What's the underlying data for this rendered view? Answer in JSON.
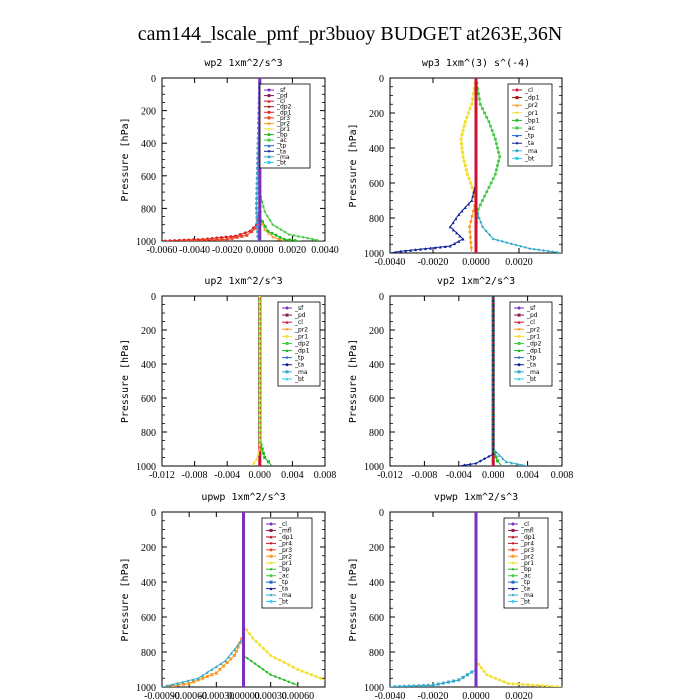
{
  "page_title": "cam144_lscale_pmf_pr3buoy  BUDGET at263E,36N",
  "chart_data": [
    {
      "type": "line",
      "title": "wp2  1xm^2/s^3",
      "ylabel": "Pressure [hPa]",
      "ylim": [
        1000,
        0
      ],
      "y_ticks": [
        "0",
        "200",
        "400",
        "600",
        "800",
        "1000"
      ],
      "xlim": [
        -0.006,
        0.004
      ],
      "x_ticks": [
        "-0.0060",
        "-0.0040",
        "-0.0020",
        "0.0000",
        "0.0020",
        "0.0040"
      ],
      "legend_position": "top-right",
      "legend": [
        "_sf",
        "_pd",
        "_cl",
        "_dp2",
        "_dp1",
        "_pr3",
        "_pr2",
        "_pr1",
        "_bp",
        "_ac",
        "_tp",
        "_ta",
        "_ma",
        "_bt"
      ],
      "series_colors": [
        "#7b2fbe",
        "#8b1a5a",
        "#cc1133",
        "#aa1111",
        "#dd2222",
        "#ee4422",
        "#ff9922",
        "#f2e030",
        "#22bb22",
        "#44cc44",
        "#2266cc",
        "#112299",
        "#33aacc",
        "#33ccee"
      ],
      "series": [
        {
          "name": "_dp1",
          "points": [
            [
              -0.0058,
              1000
            ],
            [
              -0.0035,
              990
            ],
            [
              -0.0015,
              970
            ],
            [
              -0.0006,
              940
            ],
            [
              -0.0002,
              900
            ],
            [
              0.0,
              820
            ],
            [
              0.0,
              0
            ]
          ]
        },
        {
          "name": "_pr3",
          "points": [
            [
              -0.0048,
              1000
            ],
            [
              -0.002,
              990
            ],
            [
              -0.0008,
              965
            ],
            [
              -0.0002,
              920
            ],
            [
              0.0,
              850
            ],
            [
              0.0,
              0
            ]
          ]
        },
        {
          "name": "_pr2",
          "points": [
            [
              0.0,
              0
            ],
            [
              0.0,
              860
            ],
            [
              0.0003,
              930
            ],
            [
              0.0008,
              975
            ],
            [
              0.0015,
              1000
            ]
          ]
        },
        {
          "name": "_ac",
          "points": [
            [
              0.0,
              0
            ],
            [
              0.0,
              700
            ],
            [
              0.0003,
              820
            ],
            [
              0.0008,
              900
            ],
            [
              0.0018,
              960
            ],
            [
              0.0038,
              1000
            ]
          ]
        },
        {
          "name": "_bp",
          "points": [
            [
              0.0,
              0
            ],
            [
              0.0,
              850
            ],
            [
              0.0005,
              940
            ],
            [
              0.0015,
              990
            ],
            [
              0.0025,
              1000
            ]
          ]
        },
        {
          "name": "_ma",
          "points": [
            [
              0.0,
              0
            ],
            [
              -0.0001,
              400
            ],
            [
              -0.0002,
              800
            ],
            [
              -0.0001,
              1000
            ]
          ]
        },
        {
          "name": "_sf",
          "points": [
            [
              0.0,
              0
            ],
            [
              0.0,
              1000
            ]
          ]
        }
      ]
    },
    {
      "type": "line",
      "title": "wp3  1xm^(3) s^(-4)",
      "ylabel": "Pressure [hPa]",
      "ylim": [
        1000,
        0
      ],
      "y_ticks": [
        "0",
        "200",
        "400",
        "600",
        "800",
        "1000"
      ],
      "xlim": [
        -0.004,
        0.004
      ],
      "x_ticks": [
        "-0.0040",
        "-0.0020",
        "0.0000",
        "0.0020"
      ],
      "legend_position": "top-right",
      "legend": [
        "_cl",
        "_dp1",
        "_pr2",
        "_pr1",
        "_bp1",
        "_ac",
        "_tp",
        "_ta",
        "_ma",
        "_bt"
      ],
      "series_colors": [
        "#cc1133",
        "#aa1111",
        "#ff9922",
        "#f2e030",
        "#22bb22",
        "#44cc44",
        "#2266cc",
        "#112299",
        "#33aacc",
        "#33ccee"
      ],
      "series": [
        {
          "name": "_ac",
          "points": [
            [
              0.0,
              0
            ],
            [
              0.0002,
              150
            ],
            [
              0.0006,
              250
            ],
            [
              0.0009,
              350
            ],
            [
              0.0011,
              450
            ],
            [
              0.0009,
              550
            ],
            [
              0.0005,
              650
            ],
            [
              0.0001,
              750
            ],
            [
              0.0,
              850
            ],
            [
              0.0,
              1000
            ]
          ]
        },
        {
          "name": "_pr1",
          "points": [
            [
              0.0,
              0
            ],
            [
              -0.0002,
              150
            ],
            [
              -0.0005,
              250
            ],
            [
              -0.0007,
              350
            ],
            [
              -0.0006,
              450
            ],
            [
              -0.0004,
              550
            ],
            [
              -0.0001,
              650
            ],
            [
              0.0,
              750
            ],
            [
              0.0,
              1000
            ]
          ]
        },
        {
          "name": "_ta",
          "points": [
            [
              0.0,
              0
            ],
            [
              0.0,
              600
            ],
            [
              -0.0002,
              700
            ],
            [
              -0.0008,
              780
            ],
            [
              -0.0012,
              850
            ],
            [
              -0.0006,
              920
            ],
            [
              -0.0012,
              960
            ],
            [
              -0.0035,
              990
            ],
            [
              -0.004,
              1000
            ]
          ]
        },
        {
          "name": "_ma",
          "points": [
            [
              0.0,
              0
            ],
            [
              0.0,
              750
            ],
            [
              0.0003,
              850
            ],
            [
              0.0008,
              920
            ],
            [
              0.0025,
              975
            ],
            [
              0.004,
              1000
            ]
          ]
        },
        {
          "name": "_pr2",
          "points": [
            [
              0.0,
              0
            ],
            [
              0.0,
              700
            ],
            [
              -0.0003,
              850
            ],
            [
              -0.0002,
              1000
            ]
          ]
        },
        {
          "name": "_cl",
          "points": [
            [
              0.0,
              0
            ],
            [
              0.0,
              1000
            ]
          ]
        }
      ]
    },
    {
      "type": "line",
      "title": "up2  1xm^2/s^3",
      "ylabel": "Pressure [hPa]",
      "ylim": [
        1000,
        0
      ],
      "y_ticks": [
        "0",
        "200",
        "400",
        "600",
        "800",
        "1000"
      ],
      "xlim": [
        -0.012,
        0.008
      ],
      "x_ticks": [
        "-0.012",
        "-0.008",
        "-0.004",
        "0.000",
        "0.004",
        "0.008"
      ],
      "legend_position": "top-right",
      "legend": [
        "_sf",
        "_pd",
        "_cl",
        "_pr2",
        "_pr1",
        "_dp2",
        "_dp1",
        "_tp",
        "_ta",
        "_ma",
        "_bt"
      ],
      "series_colors": [
        "#7b2fbe",
        "#8b1a5a",
        "#cc1133",
        "#ff9922",
        "#f2e030",
        "#44cc44",
        "#22bb22",
        "#2266cc",
        "#112299",
        "#33aacc",
        "#33ccee"
      ],
      "series": [
        {
          "name": "_cl",
          "points": [
            [
              0.0,
              0
            ],
            [
              0.0,
              1000
            ]
          ]
        },
        {
          "name": "_dp1",
          "points": [
            [
              0.0,
              0
            ],
            [
              0.0,
              850
            ],
            [
              0.0006,
              950
            ],
            [
              0.0015,
              1000
            ]
          ]
        },
        {
          "name": "_pr1",
          "points": [
            [
              0.0,
              0
            ],
            [
              0.0,
              900
            ],
            [
              -0.0004,
              960
            ],
            [
              -0.001,
              1000
            ]
          ]
        }
      ]
    },
    {
      "type": "line",
      "title": "vp2  1xm^2/s^3",
      "ylabel": "Pressure [hPa]",
      "ylim": [
        1000,
        0
      ],
      "y_ticks": [
        "0",
        "200",
        "400",
        "600",
        "800",
        "1000"
      ],
      "xlim": [
        -0.012,
        0.008
      ],
      "x_ticks": [
        "-0.012",
        "-0.008",
        "-0.004",
        "0.000",
        "0.004",
        "0.008"
      ],
      "legend_position": "top-right",
      "legend": [
        "_sf",
        "_pd",
        "_cl",
        "_pr2",
        "_pr1",
        "_dp2",
        "_dp1",
        "_tp",
        "_ta",
        "_ma",
        "_bt"
      ],
      "series_colors": [
        "#7b2fbe",
        "#8b1a5a",
        "#cc1133",
        "#ff9922",
        "#f2e030",
        "#44cc44",
        "#22bb22",
        "#2266cc",
        "#112299",
        "#33aacc",
        "#33ccee"
      ],
      "series": [
        {
          "name": "_cl",
          "points": [
            [
              0.0,
              0
            ],
            [
              0.0,
              1000
            ]
          ]
        },
        {
          "name": "_dp1",
          "points": [
            [
              0.0,
              0
            ],
            [
              0.0,
              900
            ],
            [
              0.0005,
              970
            ],
            [
              0.001,
              1000
            ]
          ]
        },
        {
          "name": "_ma",
          "points": [
            [
              0.0,
              0
            ],
            [
              0.0,
              900
            ],
            [
              0.0015,
              975
            ],
            [
              0.004,
              1000
            ]
          ]
        },
        {
          "name": "_ta",
          "points": [
            [
              0.0,
              0
            ],
            [
              0.0,
              930
            ],
            [
              -0.002,
              985
            ],
            [
              -0.004,
              1000
            ]
          ]
        }
      ]
    },
    {
      "type": "line",
      "title": "upwp  1xm^2/s^3",
      "ylabel": "Pressure [hPa]",
      "ylim": [
        1000,
        0
      ],
      "y_ticks": [
        "0",
        "200",
        "400",
        "600",
        "800",
        "1000"
      ],
      "xlim": [
        -0.0009,
        0.0009
      ],
      "x_ticks": [
        "-0.00090",
        "-0.00060",
        "-0.00030",
        "0.00000",
        "0.00030",
        "0.00060"
      ],
      "legend_position": "top-right",
      "legend": [
        "_cl",
        "_mfl",
        "_dp1",
        "_pr4",
        "_pr3",
        "_pr2",
        "_pr1",
        "_bp",
        "_ac",
        "_tp",
        "_ta",
        "_ma",
        "_bt"
      ],
      "series_colors": [
        "#7b2fbe",
        "#8b1a5a",
        "#aa1111",
        "#cc1133",
        "#ee4422",
        "#ff9922",
        "#f2e030",
        "#22bb22",
        "#44cc44",
        "#2266cc",
        "#112299",
        "#33aacc",
        "#33ccee"
      ],
      "series": [
        {
          "name": "_pr1",
          "points": [
            [
              0.0,
              0
            ],
            [
              0.0,
              650
            ],
            [
              0.0001,
              720
            ],
            [
              0.0003,
              820
            ],
            [
              0.0006,
              900
            ],
            [
              0.0009,
              960
            ]
          ]
        },
        {
          "name": "_pr2",
          "points": [
            [
              0.0,
              0
            ],
            [
              0.0,
              700
            ],
            [
              -0.0001,
              820
            ],
            [
              -0.0003,
              920
            ],
            [
              -0.0006,
              980
            ],
            [
              -0.0009,
              1000
            ]
          ]
        },
        {
          "name": "_ma",
          "points": [
            [
              0.0,
              0
            ],
            [
              0.0,
              720
            ],
            [
              -0.0002,
              850
            ],
            [
              -0.0005,
              950
            ],
            [
              -0.0009,
              1000
            ]
          ]
        },
        {
          "name": "_bp",
          "points": [
            [
              0.0,
              0
            ],
            [
              0.0,
              820
            ],
            [
              0.0003,
              930
            ],
            [
              0.0006,
              990
            ]
          ]
        },
        {
          "name": "_cl",
          "points": [
            [
              0.0,
              0
            ],
            [
              0.0,
              1000
            ]
          ]
        }
      ]
    },
    {
      "type": "line",
      "title": "vpwp  1xm^2/s^3",
      "ylabel": "Pressure [hPa]",
      "ylim": [
        1000,
        0
      ],
      "y_ticks": [
        "0",
        "200",
        "400",
        "600",
        "800",
        "1000"
      ],
      "xlim": [
        -0.004,
        0.004
      ],
      "x_ticks": [
        "-0.0040",
        "-0.0020",
        "0.0000",
        "0.0020"
      ],
      "legend_position": "top-right",
      "legend": [
        "_cl",
        "_mfl",
        "_dp1",
        "_pr4",
        "_pr3",
        "_pr2",
        "_pr1",
        "_bp",
        "_ac",
        "_tp",
        "_ta",
        "_ma",
        "_bt"
      ],
      "series_colors": [
        "#7b2fbe",
        "#8b1a5a",
        "#aa1111",
        "#cc1133",
        "#ee4422",
        "#ff9922",
        "#f2e030",
        "#22bb22",
        "#44cc44",
        "#2266cc",
        "#112299",
        "#33aacc",
        "#33ccee"
      ],
      "series": [
        {
          "name": "_pr1",
          "points": [
            [
              0.0,
              0
            ],
            [
              0.0,
              850
            ],
            [
              0.0005,
              930
            ],
            [
              0.0015,
              980
            ],
            [
              0.004,
              1000
            ]
          ]
        },
        {
          "name": "_ma",
          "points": [
            [
              0.0,
              0
            ],
            [
              0.0,
              900
            ],
            [
              -0.0008,
              960
            ],
            [
              -0.002,
              990
            ],
            [
              -0.004,
              1000
            ]
          ]
        },
        {
          "name": "_cl",
          "points": [
            [
              0.0,
              0
            ],
            [
              0.0,
              1000
            ]
          ]
        }
      ]
    }
  ]
}
